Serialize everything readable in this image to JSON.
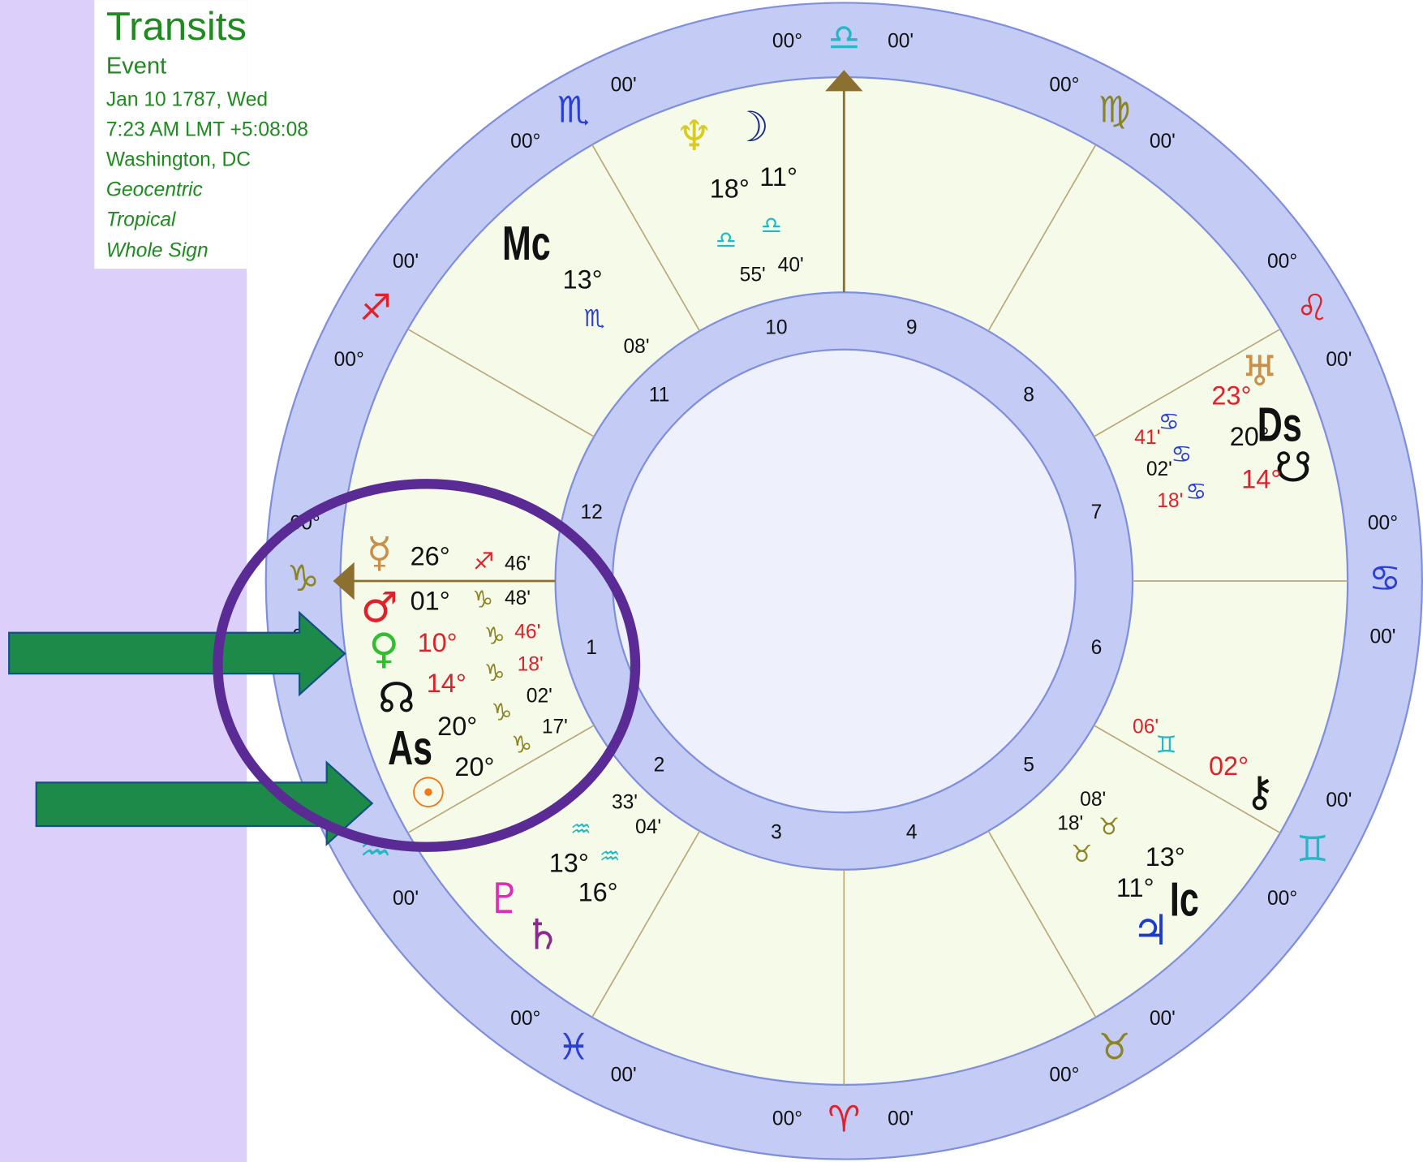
{
  "header": {
    "title": "Transits",
    "subtitle": "Event",
    "date": "Jan 10 1787, Wed",
    "time": "7:23 AM LMT +5:08:08",
    "place": "Washington, DC",
    "zodiac_center": "Geocentric",
    "zodiac_type": "Tropical",
    "house_system": "Whole Sign"
  },
  "signs": [
    {
      "glyph": "♋",
      "degree": "00°",
      "minutes": "00'",
      "color": "#2a3fd6"
    },
    {
      "glyph": "♌",
      "degree": "00°",
      "minutes": "00'",
      "color": "#e0202a"
    },
    {
      "glyph": "♍",
      "degree": "00°",
      "minutes": "00'",
      "color": "#8a8424"
    },
    {
      "glyph": "♎",
      "degree": "00°",
      "minutes": "00'",
      "color": "#22b8c4"
    },
    {
      "glyph": "♏",
      "degree": "00°",
      "minutes": "00'",
      "color": "#2a3fd6"
    },
    {
      "glyph": "♐",
      "degree": "00°",
      "minutes": "00'",
      "color": "#e0202a"
    },
    {
      "glyph": "♑",
      "degree": "00°",
      "minutes": "00'",
      "color": "#8a8424"
    },
    {
      "glyph": "♒",
      "degree": "00°",
      "minutes": "00'",
      "color": "#22b8c4"
    },
    {
      "glyph": "♓",
      "degree": "00°",
      "minutes": "00'",
      "color": "#2a3fd6"
    },
    {
      "glyph": "♈",
      "degree": "00°",
      "minutes": "00'",
      "color": "#e0202a"
    },
    {
      "glyph": "♉",
      "degree": "00°",
      "minutes": "00'",
      "color": "#8a8424"
    },
    {
      "glyph": "♊",
      "degree": "00°",
      "minutes": "00'",
      "color": "#22b8c4"
    }
  ],
  "houses": [
    1,
    2,
    3,
    4,
    5,
    6,
    7,
    8,
    9,
    10,
    11,
    12
  ],
  "points": [
    {
      "glyph": "☿",
      "degree": "26°",
      "sign": "♐",
      "minutes": "46'"
    },
    {
      "glyph": "♂",
      "degree": "01°",
      "sign": "♑",
      "minutes": "48'"
    },
    {
      "glyph": "♀",
      "degree": "10°",
      "sign": "♑",
      "minutes": "46'"
    },
    {
      "glyph": "☊",
      "degree": "14°",
      "sign": "♑",
      "minutes": "18'"
    },
    {
      "glyph": "As",
      "degree": "20°",
      "sign": "♑",
      "minutes": "02'"
    },
    {
      "glyph": "☉",
      "degree": "20°",
      "sign": "♑",
      "minutes": "17'"
    },
    {
      "glyph": "♅",
      "degree": "23°",
      "sign": "♋",
      "minutes": "41'"
    },
    {
      "glyph": "Ds",
      "degree": "20°",
      "sign": "♋",
      "minutes": "02'"
    },
    {
      "glyph": "☋",
      "degree": "14°",
      "sign": "♋",
      "minutes": "18'"
    },
    {
      "glyph": "⚷",
      "degree": "02°",
      "sign": "♊",
      "minutes": "06'"
    },
    {
      "glyph": "Ic",
      "degree": "13°",
      "sign": "♉",
      "minutes": "08'"
    },
    {
      "glyph": "♃",
      "degree": "11°",
      "sign": "♉",
      "minutes": "18'"
    },
    {
      "glyph": "♇",
      "degree": "13°",
      "sign": "♒",
      "minutes": "33'"
    },
    {
      "glyph": "♄",
      "degree": "16°",
      "sign": "♒",
      "minutes": "04'"
    },
    {
      "glyph": "♆",
      "degree": "18°",
      "sign": "♎",
      "minutes": "55'"
    },
    {
      "glyph": "☽",
      "degree": "11°",
      "sign": "♎",
      "minutes": "40'"
    },
    {
      "glyph": "Mc",
      "degree": "13°",
      "sign": "♏",
      "minutes": "08'"
    }
  ]
}
